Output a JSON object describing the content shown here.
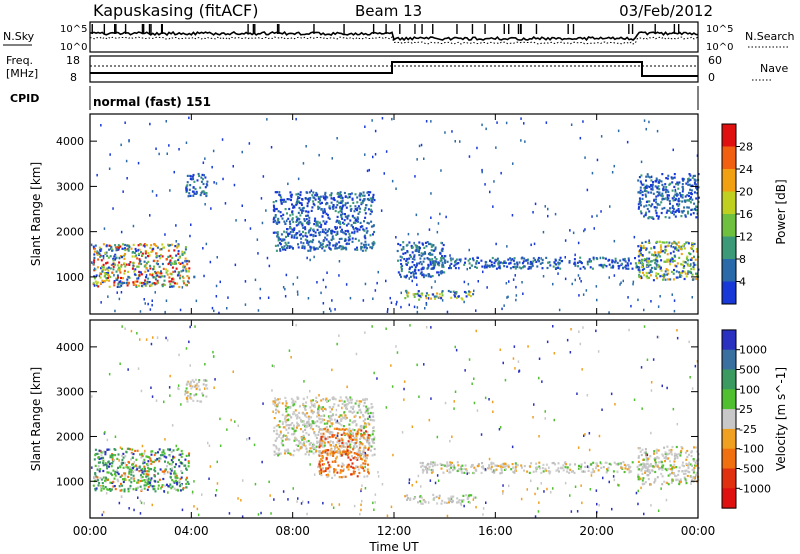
{
  "header": {
    "station": "Kapuskasing (fitACF)",
    "beam": "Beam 13",
    "date": "03/Feb/2012"
  },
  "panels": {
    "nsky_label": "N.Sky",
    "nsearch_label": "N.Search",
    "freq_label_1": "Freq.",
    "freq_label_2": "[MHz]",
    "nave_label": "Nave",
    "cpid_label": "CPID",
    "cpid_value": "normal (fast) 151",
    "noise_ticks": [
      "10^5",
      "10^0"
    ],
    "freq_ticks": [
      "18",
      "8"
    ],
    "nave_ticks": [
      "60",
      "0"
    ]
  },
  "chart_data": [
    {
      "type": "heatmap",
      "title": "Power",
      "ylabel": "Slant Range [km]",
      "xlabel": "Time UT",
      "colorbar_label": "Power [dB]",
      "colorbar_ticks": [
        "28",
        "24",
        "20",
        "16",
        "12",
        "8",
        "4"
      ],
      "colorbar_colors": [
        "#e01010",
        "#f06010",
        "#f0a010",
        "#c0d020",
        "#70c040",
        "#3c9a78",
        "#2a6aa8",
        "#1838d8"
      ],
      "y_ticks": [
        "4000",
        "3000",
        "2000",
        "1000"
      ],
      "ylim": [
        180,
        4600
      ],
      "x_ticks": [
        "00:00",
        "04:00",
        "08:00",
        "12:00",
        "16:00",
        "20:00",
        "00:00"
      ],
      "xlim_hours": [
        0,
        24
      ],
      "regions": [
        {
          "t0": 0.1,
          "t1": 3.9,
          "r0": 800,
          "r1": 1750,
          "level": "high"
        },
        {
          "t0": 3.7,
          "t1": 4.6,
          "r0": 2800,
          "r1": 3300,
          "level": "low"
        },
        {
          "t0": 7.2,
          "t1": 11.2,
          "r0": 1600,
          "r1": 2900,
          "level": "low"
        },
        {
          "t0": 12.1,
          "t1": 14.0,
          "r0": 1000,
          "r1": 1800,
          "level": "low"
        },
        {
          "t0": 12.4,
          "t1": 15.2,
          "r0": 520,
          "r1": 720,
          "level": "mid"
        },
        {
          "t0": 13.0,
          "t1": 22.5,
          "r0": 1200,
          "r1": 1450,
          "level": "low"
        },
        {
          "t0": 21.6,
          "t1": 24.0,
          "r0": 950,
          "r1": 1800,
          "level": "mid"
        },
        {
          "t0": 21.6,
          "t1": 24.0,
          "r0": 2300,
          "r1": 3300,
          "level": "low"
        }
      ]
    },
    {
      "type": "heatmap",
      "title": "Velocity",
      "ylabel": "Slant Range [km]",
      "xlabel": "Time UT",
      "colorbar_label": "Velocity [m s^-1]",
      "colorbar_ticks": [
        "1000",
        "500",
        "100",
        "25",
        "-25",
        "-100",
        "-500",
        "-1000"
      ],
      "colorbar_colors": [
        "#2a30c0",
        "#3a70a0",
        "#3a9a60",
        "#50c030",
        "#c8c8c8",
        "#f0a020",
        "#f07010",
        "#e03010",
        "#e01010"
      ],
      "y_ticks": [
        "4000",
        "3000",
        "2000",
        "1000"
      ],
      "ylim": [
        180,
        4600
      ],
      "x_ticks": [
        "00:00",
        "04:00",
        "08:00",
        "12:00",
        "16:00",
        "20:00",
        "00:00"
      ],
      "xlim_hours": [
        0,
        24
      ],
      "regions": [
        {
          "t0": 0.1,
          "t1": 3.9,
          "r0": 800,
          "r1": 1750,
          "level": "green"
        },
        {
          "t0": 3.7,
          "t1": 4.6,
          "r0": 2800,
          "r1": 3300,
          "level": "grey"
        },
        {
          "t0": 7.2,
          "t1": 11.2,
          "r0": 1600,
          "r1": 2900,
          "level": "grey"
        },
        {
          "t0": 9.0,
          "t1": 11.0,
          "r0": 1100,
          "r1": 2200,
          "level": "orange"
        },
        {
          "t0": 12.4,
          "t1": 15.2,
          "r0": 520,
          "r1": 720,
          "level": "grey"
        },
        {
          "t0": 13.0,
          "t1": 22.5,
          "r0": 1200,
          "r1": 1450,
          "level": "grey"
        },
        {
          "t0": 21.6,
          "t1": 24.0,
          "r0": 950,
          "r1": 1800,
          "level": "grey"
        }
      ]
    }
  ],
  "xaxis": {
    "label": "Time UT",
    "ticks": [
      "00:00",
      "04:00",
      "08:00",
      "12:00",
      "16:00",
      "20:00",
      "00:00"
    ]
  },
  "colors": {
    "frame": "#000000",
    "background": "#ffffff"
  }
}
